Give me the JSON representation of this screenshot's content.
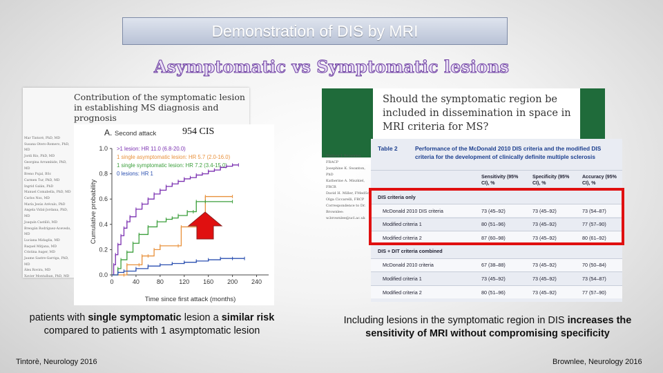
{
  "slide": {
    "title": "Demonstration of DIS by MRI",
    "subtitle": "Asymptomatic vs Symptomatic lesions"
  },
  "left": {
    "paper_title": "Contribution of the symptomatic lesion in establishing MS diagnosis and prognosis",
    "authors": [
      "Mar Tintoré, PhD, MD",
      "Susana Otero-Romero, PhD, MD",
      "Jordi Río, PhD, MD",
      "Georgina Arrambide, PhD, MD",
      "Breno Pujal, BSc",
      "Carmen Tur, PhD, MD",
      "Ingrid Galán, PhD",
      "Manuel Comabella, PhD, MD",
      "Carlos Nos, MD",
      "María Jesús Arévalo, PhD",
      "Angela Vidal-Jordana, PhD, MD",
      "Joaquín Castilló, MD",
      "Breogán Rodríguez-Acevedo, MD",
      "Luciana Midaglia, MD",
      "Raquel Mitjana, MD",
      "Cristina Auger, MD",
      "Jaume Sastre-Garriga, PhD, MD",
      "Álex Rovira, MD",
      "Xavier Montalban, PhD, MD"
    ],
    "cis_label": "954 CIS",
    "caption_parts": [
      "patients with ",
      "single symptomatic",
      " lesion a ",
      "similar risk",
      " compared to patients with 1 asymptomatic lesion"
    ],
    "citation": "Tintorè, Neurology 2016"
  },
  "chart_data": {
    "type": "line",
    "panel_label": "A.",
    "title": "Second attack",
    "xlabel": "Time since first attack (months)",
    "ylabel": "Cumulative probability",
    "xlim": [
      0,
      260
    ],
    "ylim": [
      0,
      1.0
    ],
    "xticks": [
      0,
      40,
      80,
      120,
      160,
      200,
      240
    ],
    "yticks": [
      0.0,
      0.2,
      0.4,
      0.6,
      0.8,
      1.0
    ],
    "ytick_labels": [
      "0.0",
      "0.2",
      "0.4",
      "0.6",
      "0.8",
      "1.0"
    ],
    "series": [
      {
        "name": ">1 lesion: HR 11.0 (6.8-20.0)",
        "color": "#7a2fb0",
        "x": [
          0,
          3,
          6,
          10,
          15,
          20,
          25,
          30,
          40,
          50,
          60,
          70,
          80,
          90,
          100,
          110,
          120,
          130,
          140,
          150,
          160,
          170,
          180,
          190,
          200,
          210
        ],
        "y": [
          0,
          0.08,
          0.16,
          0.24,
          0.31,
          0.37,
          0.42,
          0.46,
          0.52,
          0.56,
          0.6,
          0.64,
          0.67,
          0.7,
          0.72,
          0.74,
          0.76,
          0.77,
          0.79,
          0.8,
          0.82,
          0.83,
          0.85,
          0.86,
          0.87,
          0.87
        ]
      },
      {
        "name": "1 single asymptomatic lesion: HR 5.7 (2.0-16.0)",
        "color": "#e8903a",
        "x": [
          0,
          20,
          25,
          45,
          50,
          60,
          70,
          80,
          110,
          115,
          150,
          155,
          200
        ],
        "y": [
          0,
          0,
          0.08,
          0.08,
          0.15,
          0.15,
          0.2,
          0.23,
          0.23,
          0.38,
          0.38,
          0.62,
          0.62
        ]
      },
      {
        "name": "1 single symptomatic lesion: HR 7.2 (3.4-15.0)",
        "color": "#3a9e3a",
        "x": [
          0,
          10,
          15,
          25,
          35,
          45,
          60,
          75,
          90,
          100,
          110,
          125,
          135,
          140,
          155,
          200
        ],
        "y": [
          0,
          0.05,
          0.12,
          0.18,
          0.25,
          0.32,
          0.38,
          0.42,
          0.44,
          0.45,
          0.47,
          0.5,
          0.5,
          0.58,
          0.58,
          0.58
        ]
      },
      {
        "name": "0 lesions: HR 1",
        "color": "#2a4fb0",
        "x": [
          0,
          10,
          20,
          40,
          60,
          80,
          100,
          120,
          140,
          160,
          180,
          200,
          220
        ],
        "y": [
          0,
          0.02,
          0.03,
          0.05,
          0.07,
          0.08,
          0.09,
          0.1,
          0.11,
          0.12,
          0.13,
          0.13,
          0.13
        ]
      }
    ]
  },
  "right": {
    "paper_title": "Should the symptomatic region be included in dissemination in space in MRI criteria for MS?",
    "authors": [
      "Wallace J. Brownlee, FRACP",
      "Josephine K. Swanton, PhD",
      "Katherine A. Miszkiel, FRCR",
      "David H. Miller, FMedSci",
      "Olga Ciccarelli, FRCP",
      "Correspondence to Dr. Brownlee: w.brownlee@ucl.ac.uk"
    ],
    "table_label": "Table 2",
    "table_title": "Performance of the McDonald 2010 DIS criteria and the modified DIS criteria for the development of clinically definite multiple sclerosis",
    "headers": [
      "Sensitivity (95% CI), %",
      "Specificity (95% CI), %",
      "Accuracy (95% CI), %"
    ],
    "rows": [
      {
        "section": "DIS criteria only"
      },
      {
        "label": "McDonald 2010 DIS criteria",
        "values": [
          "73 (45–92)",
          "73 (45–92)",
          "73 (54–87)"
        ]
      },
      {
        "label": "Modified criteria 1",
        "values": [
          "80 (51–96)",
          "73 (45–92)",
          "77 (57–90)"
        ]
      },
      {
        "label": "Modified criteria 2",
        "values": [
          "87 (60–98)",
          "73 (45–92)",
          "80 (61–92)"
        ]
      },
      {
        "section": "DIS + DIT criteria combined"
      },
      {
        "label": "McDonald 2010 criteria",
        "values": [
          "67 (38–88)",
          "73 (45–92)",
          "70 (50–84)"
        ]
      },
      {
        "label": "Modified criteria 1",
        "values": [
          "73 (45–92)",
          "73 (45–92)",
          "73 (54–87)"
        ]
      },
      {
        "label": "Modified criteria 2",
        "values": [
          "80 (51–96)",
          "73 (45–92)",
          "77 (57–90)"
        ]
      }
    ],
    "caption_plain": "Including lesions in the symptomatic region in DIS ",
    "caption_bold": "increases the sensitivity of MRI without compromising specificity",
    "citation": "Brownlee, Neurology 2016"
  },
  "colors": {
    "highlight_box": "#e01010",
    "arrow": "#e01010",
    "table_accent": "#1c3f8f"
  }
}
